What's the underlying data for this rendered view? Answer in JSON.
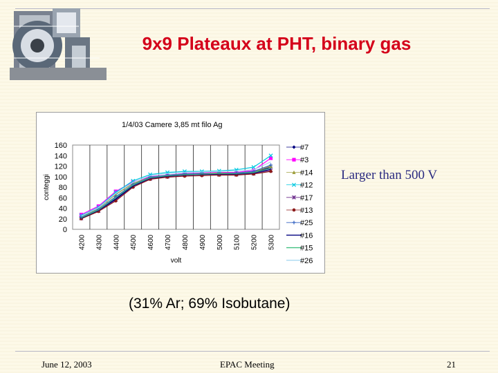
{
  "slide": {
    "title": "9x9 Plateaux at PHT, binary gas",
    "annotation": "Larger than 500 V",
    "gas_mix": "(31% Ar; 69% Isobutane)",
    "footer": {
      "date": "June 12, 2003",
      "meeting": "EPAC  Meeting",
      "page": "21"
    }
  },
  "colors": {
    "title": "#d4001a",
    "annotation": "#2a2a80",
    "background": "#fdf9e8"
  },
  "chart_data": {
    "type": "line",
    "title": "1/4/03  Camere 3,85 mt filo Ag",
    "xlabel": "volt",
    "ylabel": "conteggi",
    "categories": [
      "4200",
      "4300",
      "4400",
      "4500",
      "4600",
      "4700",
      "4800",
      "4900",
      "5000",
      "5100",
      "5200",
      "5300"
    ],
    "yticks": [
      "160",
      "140",
      "120",
      "100",
      "80",
      "60",
      "40",
      "20",
      "0"
    ],
    "ylim": [
      0,
      160
    ],
    "grid": "vertical",
    "legend_position": "right",
    "series": [
      {
        "name": "#7",
        "color": "#000080",
        "marker": "diamond",
        "values": [
          22,
          36,
          58,
          83,
          98,
          102,
          104,
          105,
          106,
          106,
          108,
          118
        ]
      },
      {
        "name": "#3",
        "color": "#ff00ff",
        "marker": "square",
        "values": [
          28,
          44,
          72,
          90,
          100,
          103,
          106,
          107,
          108,
          108,
          112,
          135
        ]
      },
      {
        "name": "#14",
        "color": "#a0a040",
        "marker": "triangle",
        "values": [
          24,
          40,
          66,
          87,
          99,
          102,
          105,
          106,
          107,
          107,
          109,
          120
        ]
      },
      {
        "name": "#12",
        "color": "#00c8e0",
        "marker": "x",
        "values": [
          26,
          42,
          70,
          92,
          104,
          108,
          110,
          110,
          111,
          113,
          118,
          140
        ]
      },
      {
        "name": "#17",
        "color": "#6a2a8a",
        "marker": "star",
        "values": [
          21,
          35,
          56,
          82,
          96,
          100,
          103,
          104,
          104,
          104,
          106,
          112
        ]
      },
      {
        "name": "#13",
        "color": "#8b1a1a",
        "marker": "circle",
        "values": [
          20,
          34,
          54,
          80,
          95,
          99,
          101,
          102,
          103,
          103,
          105,
          110
        ]
      },
      {
        "name": "#25",
        "color": "#3060c0",
        "marker": "plus",
        "values": [
          23,
          38,
          62,
          85,
          99,
          103,
          105,
          106,
          106,
          107,
          110,
          122
        ]
      },
      {
        "name": "#16",
        "color": "#000080",
        "marker": "none",
        "values": [
          21,
          36,
          57,
          82,
          97,
          101,
          103,
          104,
          105,
          105,
          107,
          114
        ]
      },
      {
        "name": "#15",
        "color": "#40c080",
        "marker": "none",
        "values": [
          22,
          37,
          60,
          84,
          98,
          102,
          104,
          105,
          106,
          106,
          108,
          116
        ]
      },
      {
        "name": "#26",
        "color": "#a8d8f0",
        "marker": "none",
        "values": [
          25,
          41,
          68,
          89,
          102,
          106,
          108,
          109,
          110,
          111,
          113,
          128
        ]
      }
    ]
  }
}
